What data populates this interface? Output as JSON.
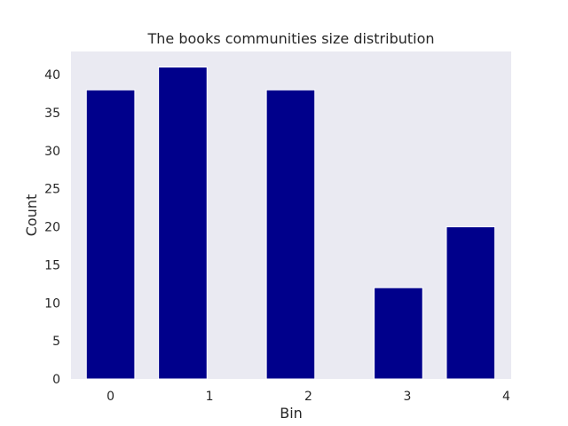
{
  "chart_data": {
    "type": "bar",
    "title": "The books communities size distribution",
    "xlabel": "Bin",
    "ylabel": "Count",
    "bars": [
      {
        "x": 0.0,
        "value": 38
      },
      {
        "x": 0.73,
        "value": 41
      },
      {
        "x": 1.82,
        "value": 38
      },
      {
        "x": 2.91,
        "value": 12
      },
      {
        "x": 3.64,
        "value": 20
      }
    ],
    "bar_width": 0.49,
    "xlim": [
      -0.4,
      4.05
    ],
    "ylim": [
      0,
      43.05
    ],
    "xticks": [
      0,
      1,
      2,
      3,
      4
    ],
    "yticks": [
      0,
      5,
      10,
      15,
      20,
      25,
      30,
      35,
      40
    ],
    "grid": false,
    "bar_color": "#00008b",
    "plot_background": "#eaeaf2"
  }
}
